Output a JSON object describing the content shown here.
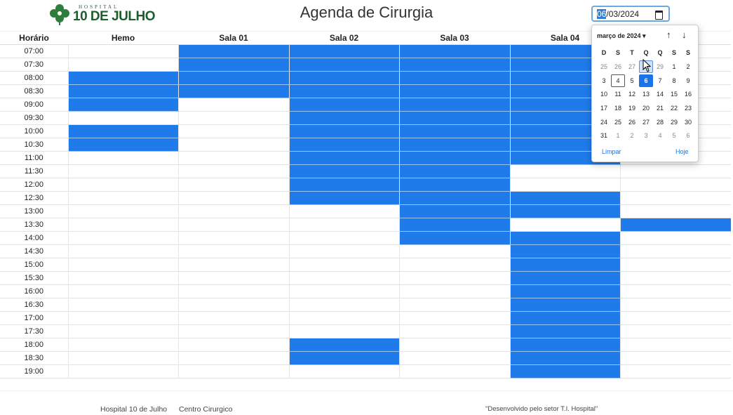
{
  "header": {
    "logo_small": "HOSPITAL",
    "logo_big": "10 DE JULHO",
    "title": "Agenda de Cirurgia",
    "date_value_day": "06",
    "date_value_rest": "/03/2024"
  },
  "table": {
    "columns": [
      "Horário",
      "Hemo",
      "Sala 01",
      "Sala 02",
      "Sala 03",
      "Sala 04",
      ""
    ],
    "times": [
      "07:00",
      "07:30",
      "08:00",
      "08:30",
      "09:00",
      "09:30",
      "10:00",
      "10:30",
      "11:00",
      "11:30",
      "12:00",
      "12:30",
      "13:00",
      "13:30",
      "14:00",
      "14:30",
      "15:00",
      "15:30",
      "16:00",
      "16:30",
      "17:00",
      "17:30",
      "18:00",
      "18:30",
      "19:00"
    ],
    "busy": [
      [
        0,
        1,
        1,
        1,
        1,
        0
      ],
      [
        0,
        1,
        1,
        1,
        1,
        0
      ],
      [
        1,
        1,
        1,
        1,
        1,
        0
      ],
      [
        1,
        1,
        1,
        1,
        1,
        0
      ],
      [
        1,
        0,
        1,
        1,
        1,
        0
      ],
      [
        0,
        0,
        1,
        1,
        1,
        0
      ],
      [
        1,
        0,
        1,
        1,
        1,
        0
      ],
      [
        1,
        0,
        1,
        1,
        1,
        0
      ],
      [
        0,
        0,
        1,
        1,
        1,
        0
      ],
      [
        0,
        0,
        1,
        1,
        0,
        0
      ],
      [
        0,
        0,
        1,
        1,
        0,
        0
      ],
      [
        0,
        0,
        1,
        1,
        1,
        0
      ],
      [
        0,
        0,
        0,
        1,
        1,
        0
      ],
      [
        0,
        0,
        0,
        1,
        0,
        1
      ],
      [
        0,
        0,
        0,
        1,
        1,
        0
      ],
      [
        0,
        0,
        0,
        0,
        1,
        0
      ],
      [
        0,
        0,
        0,
        0,
        1,
        0
      ],
      [
        0,
        0,
        0,
        0,
        1,
        0
      ],
      [
        0,
        0,
        0,
        0,
        1,
        0
      ],
      [
        0,
        0,
        0,
        0,
        1,
        0
      ],
      [
        0,
        0,
        0,
        0,
        1,
        0
      ],
      [
        0,
        0,
        0,
        0,
        1,
        0
      ],
      [
        0,
        0,
        1,
        0,
        1,
        0
      ],
      [
        0,
        0,
        1,
        0,
        1,
        0
      ],
      [
        0,
        0,
        0,
        0,
        1,
        0
      ]
    ]
  },
  "calendar": {
    "month_label": "março de 2024 ▾",
    "weekdays": [
      "D",
      "S",
      "T",
      "Q",
      "Q",
      "S",
      "S"
    ],
    "days": [
      {
        "d": "25",
        "cls": "other"
      },
      {
        "d": "26",
        "cls": "other"
      },
      {
        "d": "27",
        "cls": "other"
      },
      {
        "d": "28",
        "cls": "other hover"
      },
      {
        "d": "29",
        "cls": "other"
      },
      {
        "d": "1",
        "cls": ""
      },
      {
        "d": "2",
        "cls": ""
      },
      {
        "d": "3",
        "cls": ""
      },
      {
        "d": "4",
        "cls": "today"
      },
      {
        "d": "5",
        "cls": ""
      },
      {
        "d": "6",
        "cls": "selected"
      },
      {
        "d": "7",
        "cls": ""
      },
      {
        "d": "8",
        "cls": ""
      },
      {
        "d": "9",
        "cls": ""
      },
      {
        "d": "10",
        "cls": ""
      },
      {
        "d": "11",
        "cls": ""
      },
      {
        "d": "12",
        "cls": ""
      },
      {
        "d": "13",
        "cls": ""
      },
      {
        "d": "14",
        "cls": ""
      },
      {
        "d": "15",
        "cls": ""
      },
      {
        "d": "16",
        "cls": ""
      },
      {
        "d": "17",
        "cls": ""
      },
      {
        "d": "18",
        "cls": ""
      },
      {
        "d": "19",
        "cls": ""
      },
      {
        "d": "20",
        "cls": ""
      },
      {
        "d": "21",
        "cls": ""
      },
      {
        "d": "22",
        "cls": ""
      },
      {
        "d": "23",
        "cls": ""
      },
      {
        "d": "24",
        "cls": ""
      },
      {
        "d": "25",
        "cls": ""
      },
      {
        "d": "26",
        "cls": ""
      },
      {
        "d": "27",
        "cls": ""
      },
      {
        "d": "28",
        "cls": ""
      },
      {
        "d": "29",
        "cls": ""
      },
      {
        "d": "30",
        "cls": ""
      },
      {
        "d": "31",
        "cls": ""
      },
      {
        "d": "1",
        "cls": "other"
      },
      {
        "d": "2",
        "cls": "other"
      },
      {
        "d": "3",
        "cls": "other"
      },
      {
        "d": "4",
        "cls": "other"
      },
      {
        "d": "5",
        "cls": "other"
      },
      {
        "d": "6",
        "cls": "other"
      }
    ],
    "clear_label": "Limpar",
    "today_label": "Hoje",
    "prev_icon": "arrow-up-icon",
    "next_icon": "arrow-down-icon"
  },
  "footer": {
    "left1": "Hospital 10 de Julho",
    "left2": "Centro Cirurgico",
    "right": "\"Desenvolvido pelo setor T.I. Hospital\""
  },
  "colors": {
    "busy": "#1f7bea",
    "logo_green": "#1e5d2c",
    "accent": "#1a73e8"
  }
}
